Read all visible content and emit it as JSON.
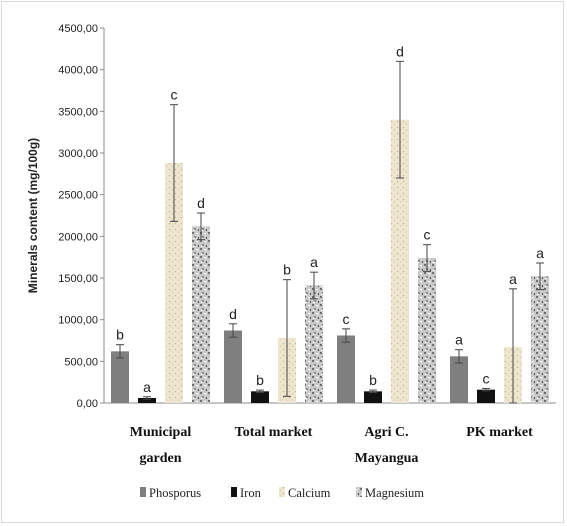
{
  "chart_data": {
    "type": "bar",
    "ylabel": "Minerals content (mg/100g)",
    "xlabel": "",
    "ylim": [
      0,
      4500
    ],
    "yticks": [
      "0,00",
      "500,00",
      "1000,00",
      "1500,00",
      "2000,00",
      "2500,00",
      "3000,00",
      "3500,00",
      "4000,00",
      "4500,00"
    ],
    "categories": [
      [
        "Municipal",
        "garden"
      ],
      [
        "Total market"
      ],
      [
        "Agri C.",
        "Mayangua"
      ],
      [
        "PK market"
      ]
    ],
    "series": [
      {
        "name": "Phosporus",
        "color": "#7f7f7f",
        "pattern": "solid",
        "values": [
          620,
          870,
          810,
          560
        ],
        "errors": [
          80,
          80,
          80,
          80
        ],
        "letters": [
          "b",
          "d",
          "c",
          "a"
        ]
      },
      {
        "name": "Iron",
        "color": "#111111",
        "pattern": "solid",
        "values": [
          60,
          140,
          140,
          160
        ],
        "errors": [
          15,
          15,
          15,
          15
        ],
        "letters": [
          "a",
          "b",
          "b",
          "c"
        ]
      },
      {
        "name": "Calcium",
        "color": "#efe6cf",
        "pattern": "speckle",
        "values": [
          2880,
          780,
          3400,
          670
        ],
        "errors": [
          700,
          700,
          700,
          700
        ],
        "letters": [
          "c",
          "b",
          "d",
          "a"
        ]
      },
      {
        "name": "Magnesium",
        "color": "#b5b5b5",
        "pattern": "granite",
        "values": [
          2120,
          1410,
          1740,
          1520
        ],
        "errors": [
          160,
          160,
          160,
          160
        ],
        "letters": [
          "d",
          "a",
          "c",
          "a"
        ]
      }
    ],
    "grid": false,
    "legend": "bottom"
  }
}
